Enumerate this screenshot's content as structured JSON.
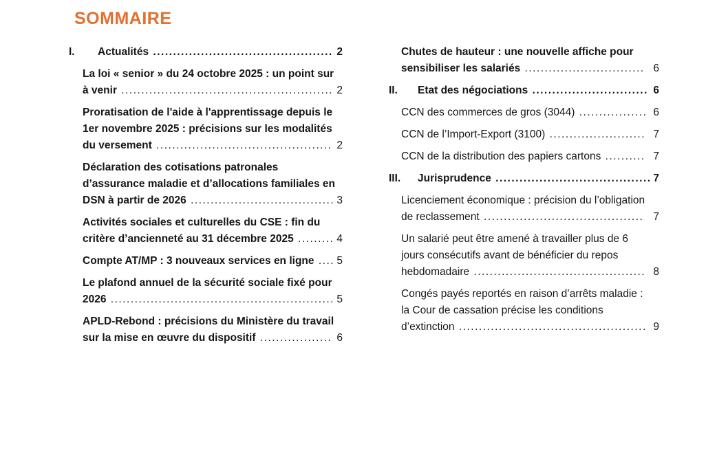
{
  "title": "SOMMAIRE",
  "accent_color": "#E2702F",
  "text_color": "#161616",
  "columns": {
    "left": [
      {
        "type": "section",
        "numeral": "I.",
        "label": "Actualités",
        "page": "2",
        "bold": true
      },
      {
        "type": "entry",
        "label": "La loi « senior » du 24 octobre 2025 : un point sur à venir",
        "page": "2",
        "bold": true
      },
      {
        "type": "entry",
        "label": "Proratisation de l'aide à l'apprentissage depuis le 1er novembre 2025 : précisions sur les modalités du versement",
        "page": "2",
        "bold": true
      },
      {
        "type": "entry",
        "label": "Déclaration des cotisations patronales d’assurance maladie et d’allocations familiales en DSN à partir de 2026",
        "page": "3",
        "bold": true
      },
      {
        "type": "entry",
        "label": "Activités sociales et culturelles du CSE : fin du critère d’ancienneté au 31 décembre 2025",
        "page": "4",
        "bold": true
      },
      {
        "type": "entry",
        "label": "Compte AT/MP : 3 nouveaux services en ligne",
        "page": "5",
        "bold": true
      },
      {
        "type": "entry",
        "label": "Le plafond annuel de la sécurité sociale fixé pour 2026",
        "page": "5",
        "bold": true
      },
      {
        "type": "entry",
        "label": "APLD-Rebond : précisions du Ministère du travail sur la mise en œuvre du dispositif",
        "page": "6",
        "bold": true
      }
    ],
    "right": [
      {
        "type": "entry",
        "label": "Chutes de hauteur : une nouvelle affiche pour sensibiliser les salariés",
        "page": "6",
        "bold": true
      },
      {
        "type": "section",
        "numeral": "II.",
        "label": "Etat des négociations",
        "page": "6",
        "bold": true
      },
      {
        "type": "entry",
        "label": "CCN des commerces de gros (3044)",
        "page": "6",
        "bold": false
      },
      {
        "type": "entry",
        "label": "CCN de l’Import-Export (3100)",
        "page": "7",
        "bold": false
      },
      {
        "type": "entry",
        "label": "CCN de la distribution des papiers cartons",
        "page": "7",
        "bold": false
      },
      {
        "type": "section",
        "numeral": "III.",
        "label": "Jurisprudence",
        "page": "7",
        "bold": true
      },
      {
        "type": "entry",
        "label": "Licenciement économique : précision du l’obligation de reclassement",
        "page": "7",
        "bold": false
      },
      {
        "type": "entry",
        "label": "Un salarié peut être amené à travailler plus de 6 jours consécutifs avant de bénéficier du repos hebdomadaire",
        "page": "8",
        "bold": false
      },
      {
        "type": "entry",
        "label": "Congés payés reportés en raison d’arrêts maladie : la Cour de cassation précise les conditions d’extinction",
        "page": "9",
        "bold": false
      }
    ]
  }
}
